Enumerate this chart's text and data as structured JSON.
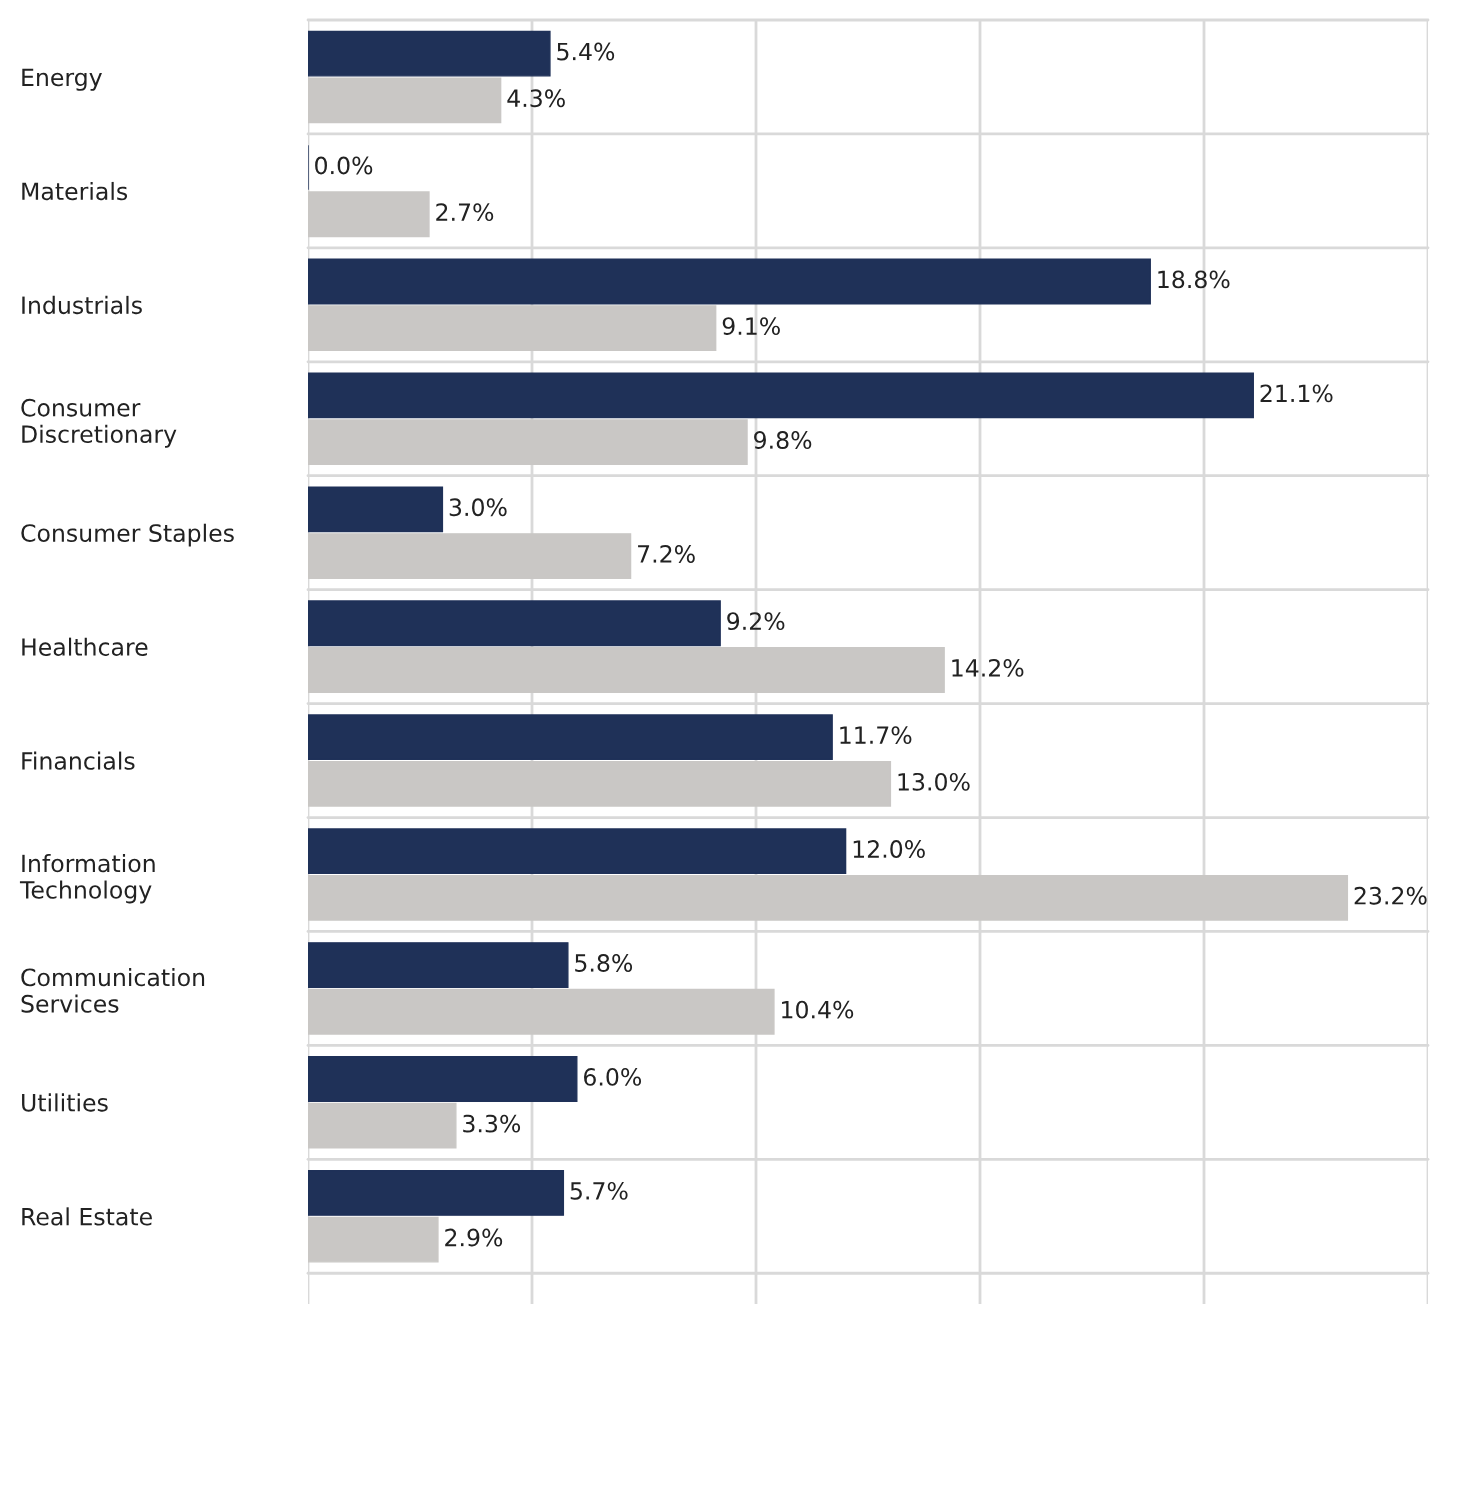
{
  "chart_data": {
    "type": "bar",
    "orientation": "horizontal",
    "categories": [
      "Energy",
      "Materials",
      "Industrials",
      "Consumer\nDiscretionary",
      "Consumer Staples",
      "Healthcare",
      "Financials",
      "Information\nTechnology",
      "Communication\nServices",
      "Utilities",
      "Real Estate"
    ],
    "series": [
      {
        "color": "#1f3158",
        "values": [
          5.4,
          0.0,
          18.8,
          21.1,
          3.0,
          9.2,
          11.7,
          12.0,
          5.8,
          6.0,
          5.7
        ],
        "value_labels": [
          "5.4%",
          "0.0%",
          "18.8%",
          "21.1%",
          "3.0%",
          "9.2%",
          "11.7%",
          "12.0%",
          "5.8%",
          "6.0%",
          "5.7%"
        ]
      },
      {
        "color": "#c9c7c5",
        "values": [
          4.3,
          2.7,
          9.1,
          9.8,
          7.2,
          14.2,
          13.0,
          23.2,
          10.4,
          3.3,
          2.9
        ],
        "value_labels": [
          "4.3%",
          "2.7%",
          "9.1%",
          "9.8%",
          "7.2%",
          "14.2%",
          "13.0%",
          "23.2%",
          "10.4%",
          "3.3%",
          "2.9%"
        ]
      }
    ],
    "xlim": [
      0,
      25
    ],
    "xticks": [
      {
        "value": 0,
        "label": null
      },
      {
        "value": 5,
        "label": null
      },
      {
        "value": 10,
        "label": null
      },
      {
        "value": 15,
        "label": null
      },
      {
        "value": 20,
        "label": null
      },
      {
        "value": 25,
        "label": null
      }
    ],
    "tick_labels": "y",
    "grid": true,
    "legend": false
  }
}
